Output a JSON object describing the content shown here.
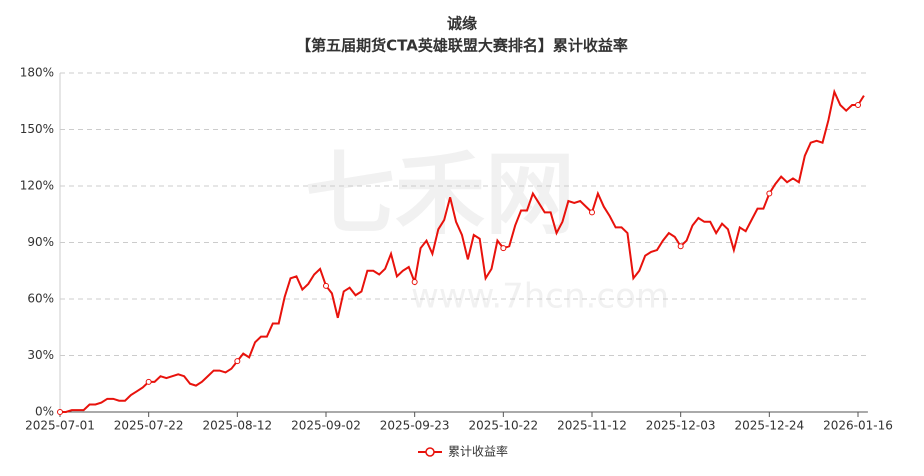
{
  "chart_data": {
    "type": "line",
    "title": "诚缘",
    "subtitle": "【第五届期货CTA英雄联盟大赛排名】累计收益率",
    "watermark": "七禾网",
    "watermark_url": "www.7hcn.com",
    "categories": [
      "2025-07-01",
      null,
      null,
      null,
      null,
      null,
      null,
      null,
      null,
      null,
      null,
      null,
      null,
      null,
      null,
      "2025-07-22",
      null,
      null,
      null,
      null,
      null,
      null,
      null,
      null,
      null,
      null,
      null,
      null,
      null,
      null,
      "2025-08-12",
      null,
      null,
      null,
      null,
      null,
      null,
      null,
      null,
      null,
      null,
      null,
      null,
      null,
      null,
      "2025-09-02",
      null,
      null,
      null,
      null,
      null,
      null,
      null,
      null,
      null,
      null,
      null,
      null,
      null,
      null,
      "2025-09-23",
      null,
      null,
      null,
      null,
      null,
      null,
      null,
      null,
      null,
      null,
      null,
      null,
      null,
      null,
      "2025-10-22",
      null,
      null,
      null,
      null,
      null,
      null,
      null,
      null,
      null,
      null,
      null,
      null,
      null,
      null,
      "2025-11-12",
      null,
      null,
      null,
      null,
      null,
      null,
      null,
      null,
      null,
      null,
      null,
      null,
      null,
      null,
      "2025-12-03",
      null,
      null,
      null,
      null,
      null,
      null,
      null,
      null,
      null,
      null,
      null,
      null,
      null,
      null,
      "2025-12-24",
      null,
      null,
      null,
      null,
      null,
      null,
      null,
      null,
      null,
      null,
      null,
      null,
      null,
      null,
      "2026-01-16",
      null
    ],
    "series": [
      {
        "name": "累计收益率",
        "color": "#e8120c",
        "values": [
          0,
          0,
          1,
          1,
          1,
          4,
          4,
          5,
          7,
          7,
          6,
          6,
          9,
          11,
          13,
          16,
          16,
          19,
          18,
          19,
          20,
          19,
          15,
          14,
          16,
          19,
          22,
          22,
          21,
          23,
          27,
          31,
          29,
          37,
          40,
          40,
          47,
          47,
          61,
          71,
          72,
          65,
          68,
          73,
          76,
          67,
          63,
          50,
          64,
          66,
          62,
          64,
          75,
          75,
          73,
          76,
          84,
          72,
          75,
          77,
          69,
          87,
          91,
          84,
          97,
          102,
          114,
          101,
          94,
          81,
          94,
          92,
          71,
          76,
          91,
          87,
          88,
          99,
          107,
          107,
          116,
          111,
          106,
          106,
          95,
          101,
          112,
          111,
          112,
          109,
          106,
          116,
          109,
          104,
          98,
          98,
          95,
          71,
          75,
          83,
          85,
          86,
          91,
          95,
          93,
          88,
          91,
          99,
          103,
          101,
          101,
          95,
          100,
          97,
          86,
          98,
          96,
          102,
          108,
          108,
          116,
          121,
          125,
          122,
          124,
          122,
          136,
          143,
          144,
          143,
          155,
          170,
          163,
          160,
          163,
          163,
          168
        ]
      }
    ],
    "ylim": [
      0,
      180
    ],
    "yticks": [
      {
        "value": 0,
        "label": "0%"
      },
      {
        "value": 30,
        "label": "30%"
      },
      {
        "value": 60,
        "label": "60%"
      },
      {
        "value": 90,
        "label": "90%"
      },
      {
        "value": 120,
        "label": "120%"
      },
      {
        "value": 150,
        "label": "150%"
      },
      {
        "value": 180,
        "label": "180%"
      }
    ],
    "grid": true,
    "legend": "bottom"
  }
}
